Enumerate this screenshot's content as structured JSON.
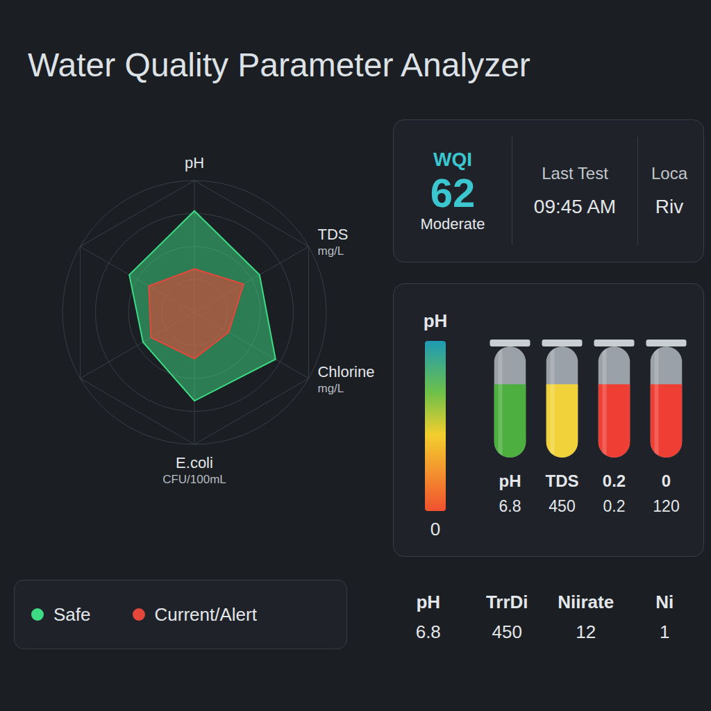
{
  "title": "Water Quality Parameter Analyzer",
  "chart_data": {
    "type": "radar",
    "categories": [
      "pH",
      "TDS",
      "Chlorine",
      "E.coli",
      null,
      null
    ],
    "units": [
      null,
      "mg/L",
      "mg/L",
      "CFU/100mL",
      null,
      null
    ],
    "ylim": [
      0,
      100
    ],
    "yticks": [
      0,
      25,
      50,
      75,
      100
    ],
    "tick_labels": "x",
    "grid": true,
    "legend": "lower left",
    "series": [
      {
        "name": "Safe",
        "color": "#3ddc84",
        "values": [
          77,
          57,
          71,
          67,
          45,
          57
        ]
      },
      {
        "name": "Current/Alert",
        "color": "#e5483b",
        "values": [
          33,
          43,
          30,
          35,
          38,
          40
        ]
      }
    ]
  },
  "summary": {
    "wqi_label": "WQI",
    "wqi": 62,
    "wqi_status": "Moderate",
    "last_test_label": "Last Test",
    "last_test": "09:45 AM",
    "location_label": "Loca",
    "location": "Riv"
  },
  "tubes": {
    "scale_label": "pH",
    "scale_min": 0,
    "level_max": 100,
    "items": [
      {
        "label": "pH",
        "value": 6.8,
        "color": "#4caf3f",
        "level": 66
      },
      {
        "label": "TDS",
        "value": 450,
        "color": "#f2d23a",
        "level": 66
      },
      {
        "label": "0.2",
        "value": 0.2,
        "color": "#ef3e33",
        "level": 66
      },
      {
        "label": "0",
        "value": 120,
        "color": "#ef3e33",
        "level": 66
      }
    ]
  },
  "readings": [
    {
      "label": "pH",
      "value": 6.8
    },
    {
      "label": "TrrDi",
      "value": 450
    },
    {
      "label": "Niirate",
      "value": 12
    },
    {
      "label": "Ni",
      "value": 1
    }
  ]
}
